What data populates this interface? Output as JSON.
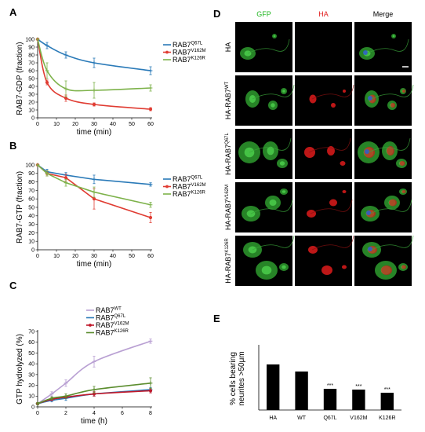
{
  "panels": {
    "A": "A",
    "B": "B",
    "C": "C",
    "D": "D",
    "E": "E"
  },
  "chart_data": [
    {
      "panel": "A",
      "type": "line",
      "ylabel": "RAB7-GDP (fraction)",
      "xlabel": "time (min)",
      "xlim": [
        0,
        60
      ],
      "ylim": [
        0,
        100
      ],
      "xticks": [
        0,
        10,
        20,
        30,
        40,
        50,
        60
      ],
      "yticks": [
        0,
        10,
        20,
        30,
        40,
        50,
        60,
        70,
        80,
        90,
        100
      ],
      "legend_position": "top-right",
      "smooth": true,
      "series": [
        {
          "name": "RAB7",
          "sup": "Q67L",
          "color": "#2a7ab8",
          "marker": "plus",
          "x": [
            0,
            5,
            15,
            30,
            60
          ],
          "y": [
            100,
            92,
            80,
            70,
            60
          ],
          "err": [
            0,
            4,
            4,
            6,
            5
          ]
        },
        {
          "name": "RAB7",
          "sup": "V162M",
          "color": "#e03c32",
          "marker": "dot",
          "x": [
            0,
            5,
            15,
            30,
            60
          ],
          "y": [
            100,
            45,
            25,
            17,
            11
          ],
          "err": [
            0,
            3,
            4,
            2,
            2
          ]
        },
        {
          "name": "RAB7",
          "sup": "K126R",
          "color": "#7db24a",
          "marker": "plus",
          "x": [
            0,
            5,
            15,
            30,
            60
          ],
          "y": [
            100,
            60,
            37,
            35,
            38
          ],
          "err": [
            0,
            10,
            10,
            10,
            4
          ]
        }
      ]
    },
    {
      "panel": "B",
      "type": "line",
      "ylabel": "RAB7-GTP (fraction)",
      "xlabel": "time (min)",
      "xlim": [
        0,
        60
      ],
      "ylim": [
        0,
        100
      ],
      "xticks": [
        0,
        10,
        20,
        30,
        40,
        50,
        60
      ],
      "yticks": [
        0,
        10,
        20,
        30,
        40,
        50,
        60,
        70,
        80,
        90,
        100
      ],
      "legend_position": "top-right",
      "smooth": false,
      "series": [
        {
          "name": "RAB7",
          "sup": "Q67L",
          "color": "#2a7ab8",
          "marker": "plus",
          "x": [
            0,
            5,
            15,
            30,
            60
          ],
          "y": [
            100,
            92,
            88,
            83,
            77
          ],
          "err": [
            0,
            3,
            3,
            5,
            2
          ]
        },
        {
          "name": "RAB7",
          "sup": "V162M",
          "color": "#e03c32",
          "marker": "dot",
          "x": [
            0,
            5,
            15,
            30,
            60
          ],
          "y": [
            100,
            90,
            85,
            60,
            38
          ],
          "err": [
            0,
            3,
            4,
            12,
            6
          ]
        },
        {
          "name": "RAB7",
          "sup": "K126R",
          "color": "#7db24a",
          "marker": "plus",
          "x": [
            0,
            5,
            15,
            30,
            60
          ],
          "y": [
            100,
            90,
            79,
            68,
            53
          ],
          "err": [
            0,
            3,
            4,
            6,
            3
          ]
        }
      ]
    },
    {
      "panel": "C",
      "type": "line",
      "ylabel": "GTP hydrolyzed (%)",
      "xlabel": "time (h)",
      "xlim": [
        0,
        8
      ],
      "ylim": [
        0,
        70
      ],
      "xticks": [
        0,
        2,
        4,
        6,
        8
      ],
      "yticks": [
        0,
        10,
        20,
        30,
        40,
        50,
        60,
        70
      ],
      "legend_position": "top-left",
      "smooth": true,
      "series": [
        {
          "name": "RAB7",
          "sup": "WT",
          "color": "#b9a0d3",
          "marker": "plus",
          "x": [
            0,
            1,
            2,
            4,
            8
          ],
          "y": [
            3,
            12,
            22,
            42,
            61
          ],
          "err": [
            1,
            2,
            3,
            5,
            2
          ]
        },
        {
          "name": "RAB7",
          "sup": "Q67L",
          "color": "#2a7ab8",
          "marker": "plus",
          "x": [
            0,
            1,
            2,
            4,
            8
          ],
          "y": [
            3,
            6,
            8,
            12,
            16
          ],
          "err": [
            1,
            1,
            2,
            2,
            2
          ]
        },
        {
          "name": "RAB7",
          "sup": "V162M",
          "color": "#c0182a",
          "marker": "dot",
          "x": [
            0,
            1,
            2,
            4,
            8
          ],
          "y": [
            3,
            7,
            9,
            12,
            15
          ],
          "err": [
            1,
            1,
            1,
            2,
            2
          ]
        },
        {
          "name": "RAB7",
          "sup": "K126R",
          "color": "#5b8d2e",
          "marker": "plus",
          "x": [
            0,
            1,
            2,
            4,
            8
          ],
          "y": [
            3,
            8,
            10,
            16,
            22
          ],
          "err": [
            1,
            1,
            2,
            3,
            5
          ]
        }
      ]
    },
    {
      "panel": "E",
      "type": "bar",
      "ylabel_lines": [
        "% cells bearing",
        "neurites >50μm"
      ],
      "ylim": [
        0,
        40
      ],
      "categories": [
        "HA",
        "WT",
        "Q67L",
        "V162M",
        "K126R"
      ],
      "values": [
        29,
        24.5,
        13.5,
        13,
        11
      ],
      "significance": [
        "",
        "",
        "***",
        "***",
        "***"
      ],
      "bar_color": "#000000"
    }
  ],
  "micrographs": {
    "columns": [
      {
        "label": "GFP",
        "color": "#1fb51f"
      },
      {
        "label": "HA",
        "color": "#e11b1b"
      },
      {
        "label": "Merge",
        "color": "#000000"
      }
    ],
    "rows": [
      {
        "base": "HA",
        "sup": ""
      },
      {
        "base": "HA-RAB7",
        "sup": "WT"
      },
      {
        "base": "HA-RAB7",
        "sup": "Q67L"
      },
      {
        "base": "HA-RAB7",
        "sup": "V162M"
      },
      {
        "base": "HA-RAB7",
        "sup": "K126R"
      }
    ]
  }
}
